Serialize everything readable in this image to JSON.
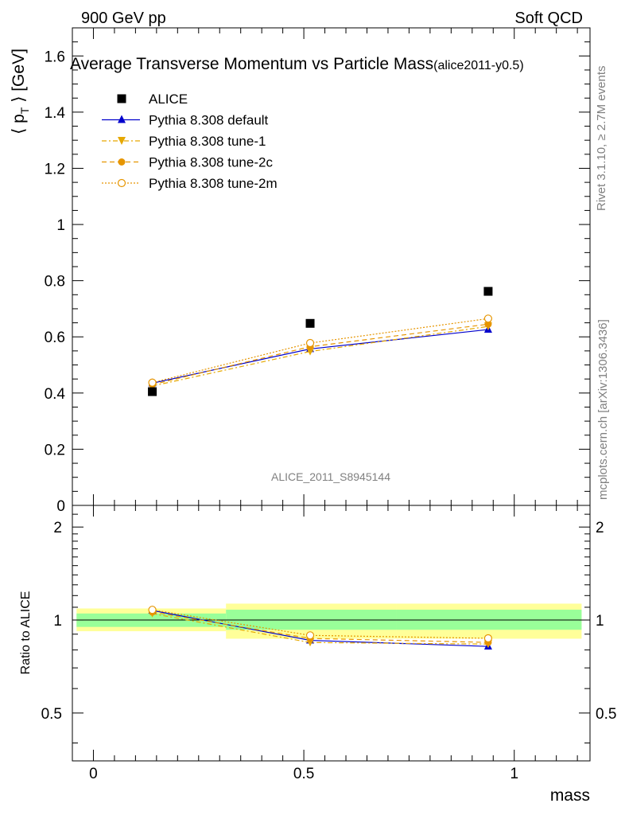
{
  "header": {
    "left": "900 GeV pp",
    "right": "Soft QCD"
  },
  "side_labels": {
    "rivet": "Rivet 3.1.10, ≥ 2.7M events",
    "mcplots": "mcplots.cern.ch [arXiv:1306.3436]"
  },
  "chart_data": {
    "type": "scatter",
    "title": "Average Transverse Momentum vs Particle Mass",
    "title_suffix": "(alice2011-y0.5)",
    "watermark": "ALICE_2011_S8945144",
    "xlabel": "mass",
    "ylabel": "⟨ p_T ⟩ [GeV]",
    "ratio_ylabel": "Ratio to ALICE",
    "xlim": [
      -0.05,
      1.18
    ],
    "ylim": [
      0,
      1.7
    ],
    "ratio_ylim": [
      0.35,
      2.35
    ],
    "ratio_scale": "log",
    "x_ticks": [
      0,
      0.5,
      1
    ],
    "x_tick_labels": [
      "0",
      "0.5",
      "1"
    ],
    "y_ticks": [
      0,
      0.2,
      0.4,
      0.6,
      0.8,
      1,
      1.2,
      1.4,
      1.6
    ],
    "y_tick_labels": [
      "0",
      "0.2",
      "0.4",
      "0.6",
      "0.8",
      "1",
      "1.2",
      "1.4",
      "1.6"
    ],
    "ratio_ticks": [
      0.5,
      1,
      2
    ],
    "ratio_tick_labels": [
      "0.5",
      "1",
      "2"
    ],
    "legend_position": "top-left",
    "data": {
      "name": "ALICE",
      "x": [
        0.14,
        0.515,
        0.938
      ],
      "y": [
        0.405,
        0.648,
        0.762
      ],
      "color": "#000000"
    },
    "series": [
      {
        "name": "Pythia 8.308 default",
        "x": [
          0.14,
          0.515,
          0.938
        ],
        "y": [
          0.435,
          0.557,
          0.626
        ],
        "color": "#0000cc",
        "dash": "",
        "marker": "triangle-up"
      },
      {
        "name": "Pythia 8.308 tune-1",
        "x": [
          0.14,
          0.515,
          0.938
        ],
        "y": [
          0.425,
          0.548,
          0.637
        ],
        "color": "#e6a800",
        "dash": "6,3,2,3",
        "marker": "triangle-down"
      },
      {
        "name": "Pythia 8.308 tune-2c",
        "x": [
          0.14,
          0.515,
          0.938
        ],
        "y": [
          0.43,
          0.565,
          0.645
        ],
        "color": "#e69500",
        "dash": "6,4",
        "marker": "circle"
      },
      {
        "name": "Pythia 8.308 tune-2m",
        "x": [
          0.14,
          0.515,
          0.938
        ],
        "y": [
          0.437,
          0.578,
          0.665
        ],
        "color": "#e69500",
        "dash": "2,2",
        "marker": "circle-open"
      }
    ],
    "ratio_bands": [
      {
        "x_low": -0.04,
        "x_high": 0.315,
        "inner": [
          0.95,
          1.05
        ],
        "outer": [
          0.92,
          1.09
        ],
        "inner_color": "#99ff99",
        "outer_color": "#ffff99"
      },
      {
        "x_low": 0.315,
        "x_high": 0.72,
        "inner": [
          0.93,
          1.08
        ],
        "outer": [
          0.87,
          1.13
        ],
        "inner_color": "#99ff99",
        "outer_color": "#ffff99"
      },
      {
        "x_low": 0.72,
        "x_high": 1.16,
        "inner": [
          0.93,
          1.08
        ],
        "outer": [
          0.87,
          1.13
        ],
        "inner_color": "#99ff99",
        "outer_color": "#ffff99"
      }
    ]
  }
}
